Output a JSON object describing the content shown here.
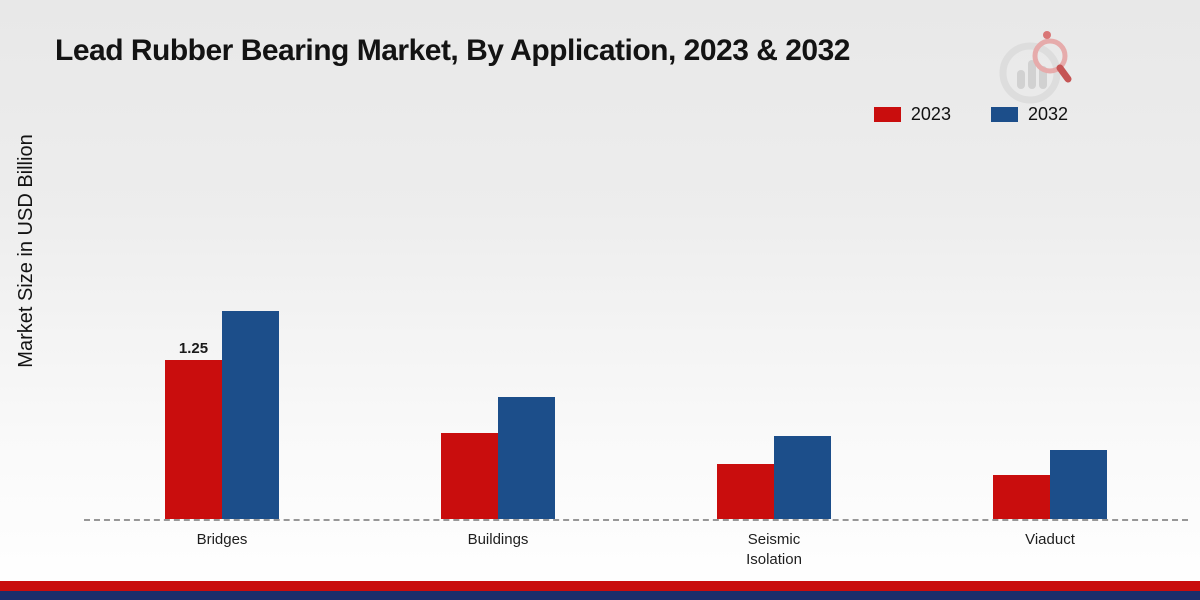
{
  "title": "Lead Rubber Bearing Market, By Application, 2023 & 2032",
  "ylabel": "Market Size in USD Billion",
  "colors": {
    "series_2023": "#c90d0d",
    "series_2032": "#1c4e8a",
    "footer_red": "#c90d0d",
    "footer_navy": "#1b2e6b",
    "baseline": "#979797"
  },
  "logo": {
    "name": "market-research-brand-logo"
  },
  "chart_data": {
    "type": "bar",
    "title": "Lead Rubber Bearing Market, By Application, 2023 & 2032",
    "xlabel": "",
    "ylabel": "Market Size in USD Billion",
    "categories": [
      "Bridges",
      "Buildings",
      "Seismic Isolation",
      "Viaduct"
    ],
    "series": [
      {
        "name": "2023",
        "color": "#c90d0d",
        "values": [
          1.25,
          0.68,
          0.43,
          0.35
        ],
        "labels": [
          "1.25",
          "",
          "",
          ""
        ]
      },
      {
        "name": "2032",
        "color": "#1c4e8a",
        "values": [
          1.64,
          0.96,
          0.65,
          0.54
        ],
        "labels": [
          "",
          "",
          "",
          ""
        ]
      }
    ],
    "ylim": [
      0,
      2.2
    ],
    "grid": false,
    "axis_line": "dashed-baseline-only",
    "legend_position": "top-right",
    "data_labels_shown": "only 1.25 above Bridges 2023 bar"
  }
}
